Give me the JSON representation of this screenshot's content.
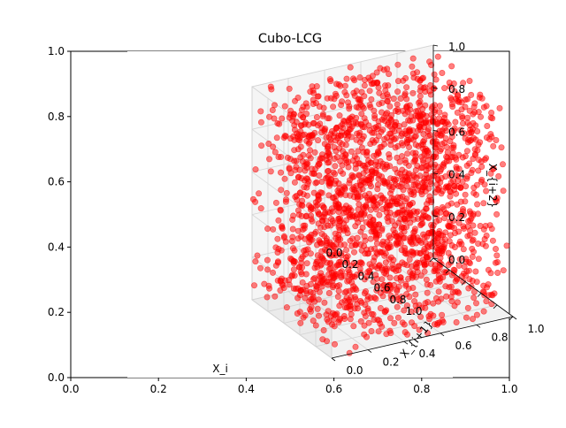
{
  "chart_data": {
    "type": "scatter",
    "projection": "3d",
    "title": "Cubo-LCG",
    "marker_color": "#ff0000",
    "marker_alpha": 0.5,
    "point_count": 2000,
    "distribution": "uniform random in unit cube [0,1]^3 (Linear Congruential Generator)",
    "axes3d": {
      "xlabel": "X_i",
      "ylabel": "X_{i+1}",
      "zlabel": "X_{i+2}",
      "xlim": [
        0,
        1
      ],
      "ylim": [
        0,
        1
      ],
      "zlim": [
        0,
        1
      ],
      "x_ticks": [
        "0.0",
        "0.2",
        "0.4",
        "0.6",
        "0.8",
        "1.0"
      ],
      "y_ticks": [
        "0.0",
        "0.2",
        "0.4",
        "0.6",
        "0.8",
        "1.0"
      ],
      "z_ticks": [
        "0.0",
        "0.2",
        "0.4",
        "0.6",
        "0.8",
        "1.0"
      ]
    },
    "axes2d_background": {
      "xlim": [
        0,
        1
      ],
      "ylim": [
        0,
        1
      ],
      "x_ticks": [
        "0.0",
        "0.2",
        "0.4",
        "0.6",
        "0.8",
        "1.0"
      ],
      "y_ticks": [
        "0.0",
        "0.2",
        "0.4",
        "0.6",
        "0.8",
        "1.0"
      ]
    },
    "grid": true
  }
}
